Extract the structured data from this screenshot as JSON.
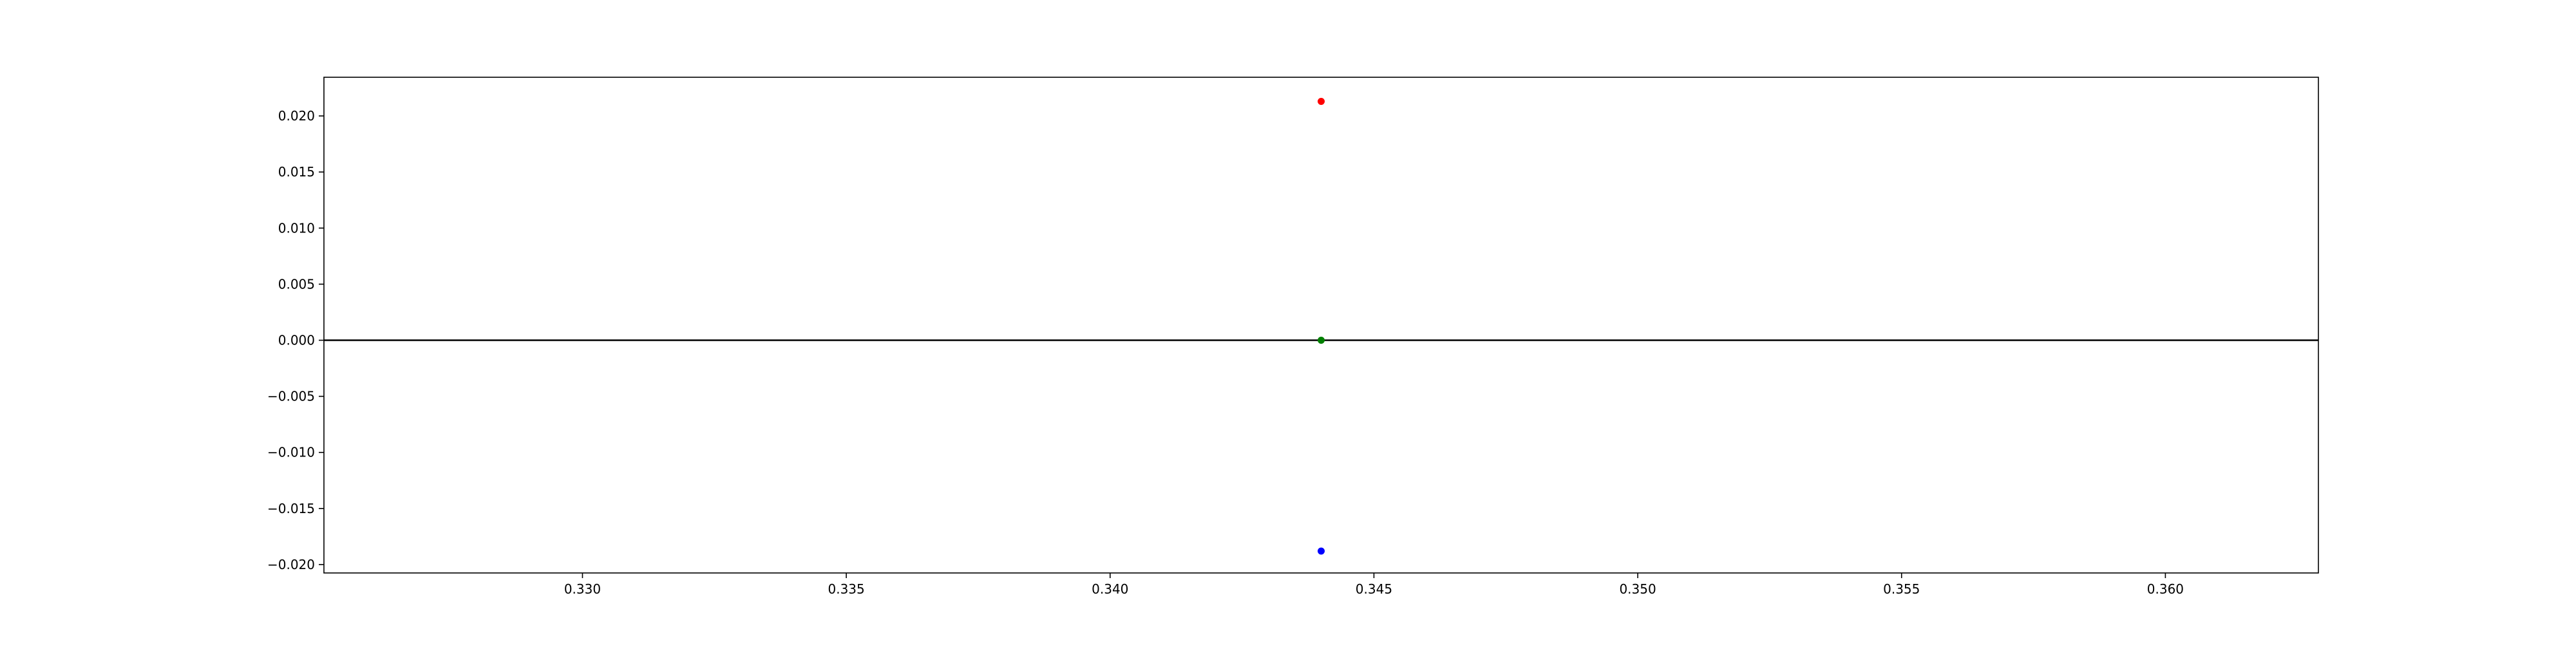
{
  "chart_data": {
    "type": "scatter",
    "title": "",
    "xlabel": "",
    "ylabel": "",
    "xlim": [
      0.3251,
      0.3629
    ],
    "ylim": [
      -0.02075,
      0.02345
    ],
    "grid": false,
    "x_ticks": [
      "0.330",
      "0.335",
      "0.340",
      "0.345",
      "0.350",
      "0.355",
      "0.360"
    ],
    "y_ticks": [
      "0.020",
      "0.015",
      "0.010",
      "0.005",
      "0.000",
      "−0.005",
      "−0.010",
      "−0.015",
      "−0.020"
    ],
    "reference_line": {
      "y": 0.0,
      "color": "#000000"
    },
    "points": [
      {
        "x": 0.344,
        "y": 0.0213,
        "color": "#ff0000"
      },
      {
        "x": 0.344,
        "y": 0.0,
        "color": "#008000"
      },
      {
        "x": 0.344,
        "y": -0.0188,
        "color": "#0000ff"
      }
    ]
  }
}
